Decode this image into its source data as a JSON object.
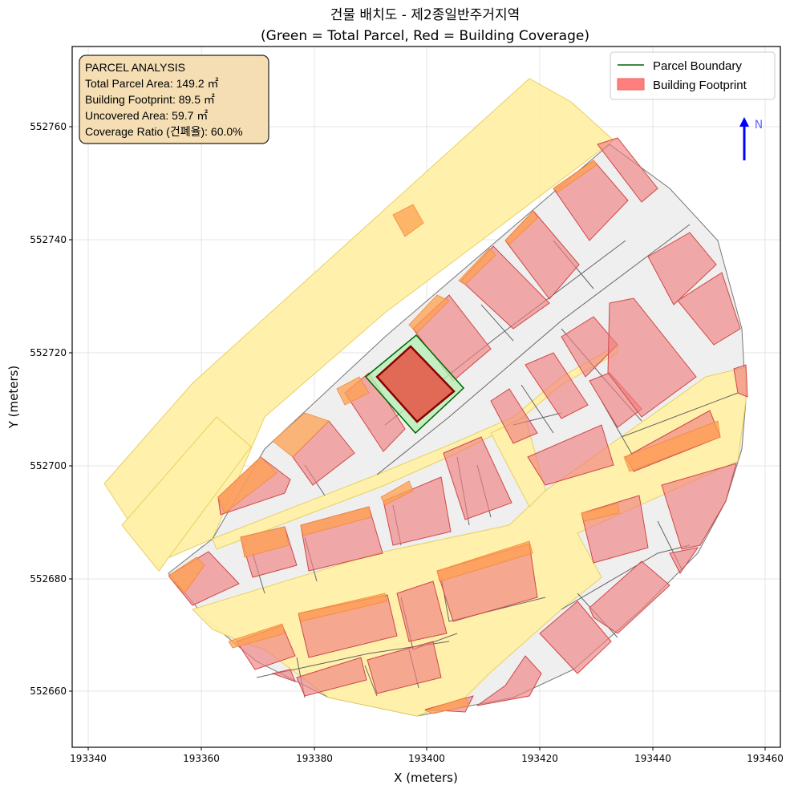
{
  "title": {
    "line1": "건물 배치도 - 제2종일반주거지역",
    "line2": "(Green = Total Parcel, Red = Building Coverage)"
  },
  "axes": {
    "xlabel": "X (meters)",
    "ylabel": "Y (meters)",
    "xticks": [
      "193340",
      "193360",
      "193380",
      "193400",
      "193420",
      "193440",
      "193460"
    ],
    "yticks": [
      "552760",
      "552740",
      "552720",
      "552700",
      "552680",
      "552660"
    ],
    "xlim": [
      193337,
      193462
    ],
    "ylim": [
      552650,
      552774
    ]
  },
  "info_box": {
    "heading": "PARCEL ANALYSIS",
    "total_parcel": "Total Parcel Area: 149.2 ㎡",
    "footprint": "Building Footprint: 89.5 ㎡",
    "uncovered": "Uncovered Area: 59.7 ㎡",
    "coverage": "Coverage Ratio (건폐율): 60.0%"
  },
  "legend": {
    "items": [
      {
        "label": "Parcel Boundary",
        "color": "#006400"
      },
      {
        "label": "Building Footprint",
        "color": "#ff7f7f"
      }
    ]
  },
  "north_arrow": {
    "label": "N",
    "color": "#0000ff"
  },
  "colors": {
    "parcel_fill": "#b8f0b8",
    "parcel_edge": "#006400",
    "building_fill": "#e06a55",
    "building_edge": "#8b0000",
    "road": "#fff0a8"
  }
}
